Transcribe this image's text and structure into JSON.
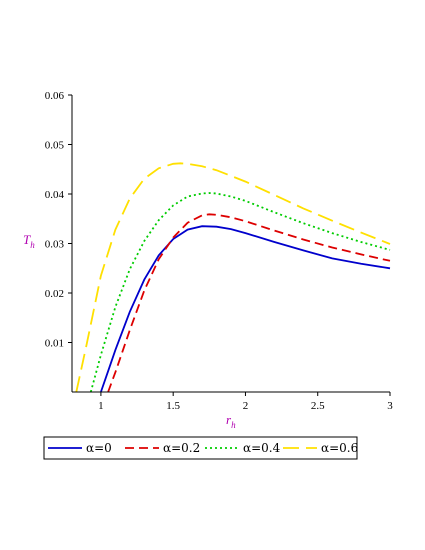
{
  "chart_data": {
    "type": "line",
    "xlabel": "r",
    "xlabel_sub": "h",
    "ylabel": "T",
    "ylabel_sub": "h",
    "xlim": [
      0.8,
      3.0
    ],
    "ylim": [
      0.0,
      0.06
    ],
    "x_ticks": [
      1,
      1.5,
      2,
      2.5,
      3
    ],
    "x_tick_labels": [
      "1",
      "1.5",
      "2",
      "2.5",
      "3"
    ],
    "y_ticks": [
      0.01,
      0.02,
      0.03,
      0.04,
      0.05,
      0.06
    ],
    "y_tick_labels": [
      "0.01",
      "0.02",
      "0.03",
      "0.04",
      "0.05",
      "0.06"
    ],
    "grid": false,
    "legend_position": "bottom",
    "series": [
      {
        "name": "α=0",
        "color": "#0000cc",
        "dash": "solid",
        "points": [
          [
            1.0,
            0.0
          ],
          [
            1.05,
            0.0042
          ],
          [
            1.1,
            0.0085
          ],
          [
            1.2,
            0.0162
          ],
          [
            1.3,
            0.0227
          ],
          [
            1.4,
            0.0276
          ],
          [
            1.5,
            0.0309
          ],
          [
            1.6,
            0.0328
          ],
          [
            1.7,
            0.0335
          ],
          [
            1.8,
            0.0334
          ],
          [
            1.9,
            0.0329
          ],
          [
            2.0,
            0.0321
          ],
          [
            2.2,
            0.0303
          ],
          [
            2.4,
            0.0286
          ],
          [
            2.6,
            0.027
          ],
          [
            2.8,
            0.0259
          ],
          [
            3.0,
            0.025
          ]
        ]
      },
      {
        "name": "α=0.2",
        "color": "#dd0000",
        "dash": "dashed",
        "points": [
          [
            1.05,
            0.0
          ],
          [
            1.1,
            0.004
          ],
          [
            1.2,
            0.0125
          ],
          [
            1.3,
            0.0205
          ],
          [
            1.4,
            0.0268
          ],
          [
            1.5,
            0.0312
          ],
          [
            1.6,
            0.0342
          ],
          [
            1.7,
            0.0357
          ],
          [
            1.75,
            0.0359
          ],
          [
            1.8,
            0.0358
          ],
          [
            1.9,
            0.0353
          ],
          [
            2.0,
            0.0345
          ],
          [
            2.2,
            0.0326
          ],
          [
            2.4,
            0.0308
          ],
          [
            2.6,
            0.0292
          ],
          [
            2.8,
            0.0278
          ],
          [
            3.0,
            0.0265
          ]
        ]
      },
      {
        "name": "α=0.4",
        "color": "#00cc00",
        "dash": "dotted",
        "points": [
          [
            0.93,
            0.0
          ],
          [
            1.0,
            0.0075
          ],
          [
            1.1,
            0.0172
          ],
          [
            1.2,
            0.0248
          ],
          [
            1.3,
            0.0305
          ],
          [
            1.4,
            0.0347
          ],
          [
            1.5,
            0.0377
          ],
          [
            1.6,
            0.0395
          ],
          [
            1.7,
            0.0401
          ],
          [
            1.75,
            0.0402
          ],
          [
            1.8,
            0.0401
          ],
          [
            1.9,
            0.0395
          ],
          [
            2.0,
            0.0386
          ],
          [
            2.2,
            0.0363
          ],
          [
            2.4,
            0.0341
          ],
          [
            2.6,
            0.0321
          ],
          [
            2.8,
            0.0303
          ],
          [
            3.0,
            0.0287
          ]
        ]
      },
      {
        "name": "α=0.6",
        "color": "#ffe000",
        "dash": "longdash",
        "points": [
          [
            0.83,
            0.0
          ],
          [
            0.9,
            0.0095
          ],
          [
            1.0,
            0.0235
          ],
          [
            1.1,
            0.0328
          ],
          [
            1.2,
            0.0391
          ],
          [
            1.3,
            0.0431
          ],
          [
            1.4,
            0.0452
          ],
          [
            1.5,
            0.0461
          ],
          [
            1.55,
            0.0462
          ],
          [
            1.6,
            0.0461
          ],
          [
            1.7,
            0.0456
          ],
          [
            1.8,
            0.0448
          ],
          [
            2.0,
            0.0425
          ],
          [
            2.2,
            0.0398
          ],
          [
            2.4,
            0.0371
          ],
          [
            2.6,
            0.0346
          ],
          [
            2.8,
            0.0322
          ],
          [
            3.0,
            0.0299
          ]
        ]
      }
    ]
  }
}
